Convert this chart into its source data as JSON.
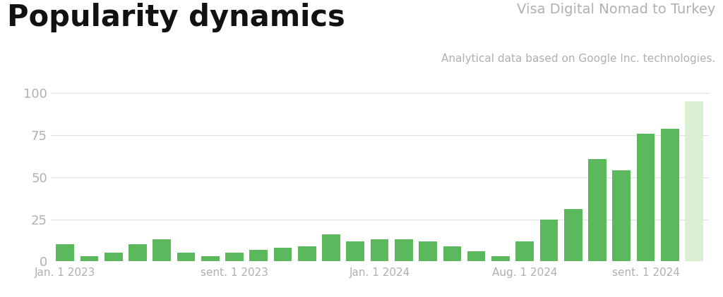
{
  "title": "Popularity dynamics",
  "subtitle1": "Visa Digital Nomad to Turkey",
  "subtitle2": "Analytical data based on Google Inc. technologies.",
  "bar_values": [
    10,
    3,
    5,
    10,
    13,
    5,
    3,
    5,
    7,
    8,
    9,
    16,
    12,
    13,
    13,
    12,
    9,
    6,
    3,
    12,
    25,
    31,
    61,
    54,
    76,
    79,
    95
  ],
  "bar_colors": [
    "#5cb85c",
    "#5cb85c",
    "#5cb85c",
    "#5cb85c",
    "#5cb85c",
    "#5cb85c",
    "#5cb85c",
    "#5cb85c",
    "#5cb85c",
    "#5cb85c",
    "#5cb85c",
    "#5cb85c",
    "#5cb85c",
    "#5cb85c",
    "#5cb85c",
    "#5cb85c",
    "#5cb85c",
    "#5cb85c",
    "#5cb85c",
    "#5cb85c",
    "#5cb85c",
    "#5cb85c",
    "#5cb85c",
    "#5cb85c",
    "#5cb85c",
    "#5cb85c",
    "#d9f0d3"
  ],
  "yticks": [
    0,
    25,
    50,
    75,
    100
  ],
  "xtick_labels": [
    "Jan. 1 2023",
    "sent. 1 2023",
    "Jan. 1 2024",
    "Aug. 1 2024",
    "sent. 1 2024"
  ],
  "xtick_positions": [
    0,
    7,
    13,
    19,
    24
  ],
  "ylim": [
    0,
    106
  ],
  "background_color": "#ffffff",
  "grid_color": "#e0e0e0",
  "title_fontsize": 30,
  "subtitle1_fontsize": 14,
  "subtitle2_fontsize": 11,
  "title_color": "#111111",
  "subtitle1_color": "#b0b0b0",
  "subtitle2_color": "#b0b0b0",
  "ytick_color": "#b0b0b0",
  "xtick_color": "#b0b0b0",
  "ytick_fontsize": 13,
  "xtick_fontsize": 11
}
